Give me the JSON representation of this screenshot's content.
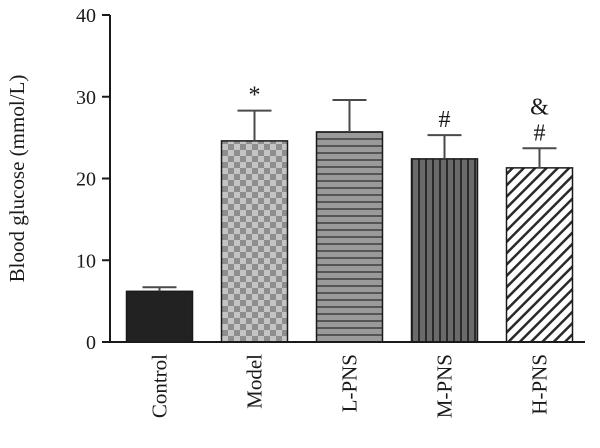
{
  "chart_data": {
    "type": "bar",
    "title": "",
    "xlabel": "",
    "ylabel": "Blood glucose (mmol/L)",
    "ylim": [
      0,
      40
    ],
    "yticks": [
      0,
      10,
      20,
      30,
      40
    ],
    "grid": false,
    "categories": [
      "Control",
      "Model",
      "L-PNS",
      "M-PNS",
      "H-PNS"
    ],
    "values": [
      6.2,
      24.6,
      25.7,
      22.4,
      21.3
    ],
    "errors": [
      0.5,
      3.7,
      3.9,
      2.9,
      2.4
    ],
    "annotations": [
      "",
      "*",
      "",
      "#",
      "&\n#"
    ],
    "fills": [
      {
        "pattern": "solid",
        "color": "#222222"
      },
      {
        "pattern": "checker",
        "color": "#a8a8a8"
      },
      {
        "pattern": "horizontal-lines",
        "color": "#8a8a8a"
      },
      {
        "pattern": "vertical-lines",
        "color": "#555555"
      },
      {
        "pattern": "diagonal-lines",
        "color": "#2a2a2a"
      }
    ]
  }
}
